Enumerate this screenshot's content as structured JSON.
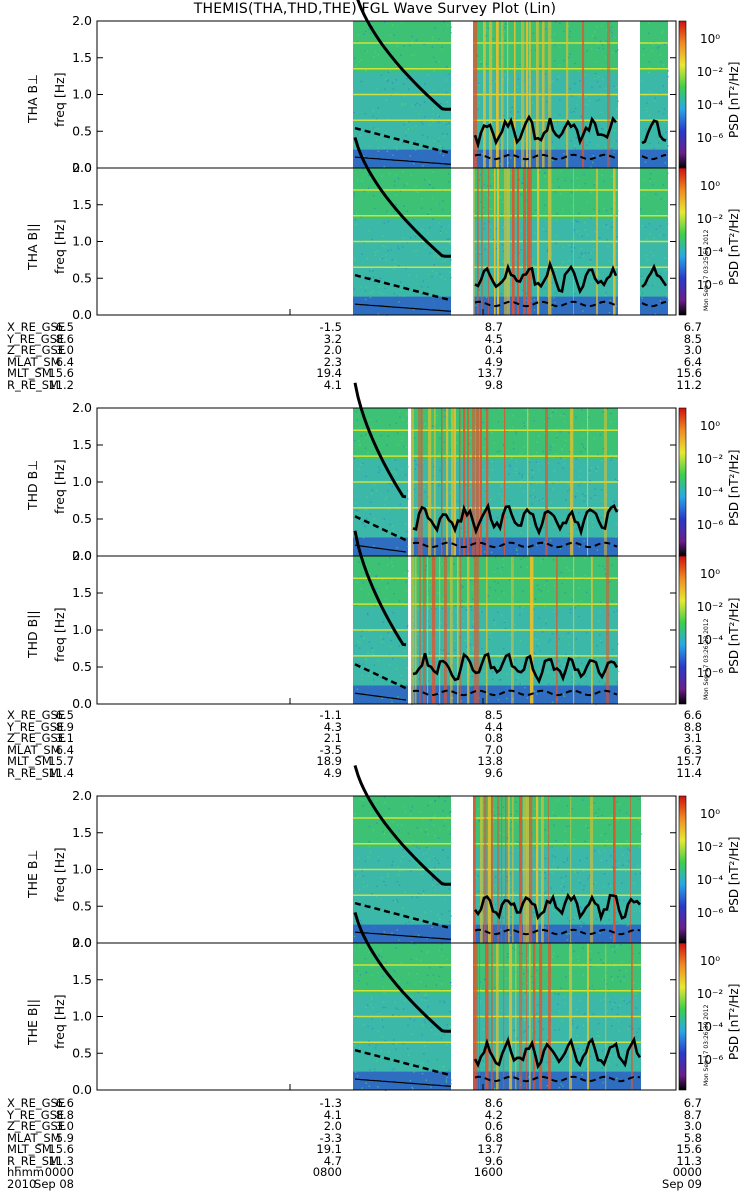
{
  "title": "THEMIS(THA,THD,THE) FGL Wave Survey Plot (Lin)",
  "colors": {
    "background": "#3cb8a8",
    "low_band": "#2a54c8",
    "high_band": "#3ecb4a",
    "hot": "#e8502a",
    "curve": "#000000",
    "line": "#e8e830"
  },
  "chart_data": [
    {
      "type": "heatmap",
      "probe": "THA",
      "panels": [
        {
          "name": "THA B⊥",
          "ylabel": "freq [Hz]",
          "component": "perp"
        },
        {
          "name": "THA B||",
          "ylabel": "freq [Hz]",
          "component": "par"
        }
      ],
      "y_ticks": [
        "2.0",
        "1.5",
        "1.0",
        "0.5",
        "0.0"
      ],
      "ylim": [
        0,
        2.0
      ],
      "colorbar_label": "PSD [nT²/Hz]",
      "colorbar_ticks": [
        "10⁰",
        "10⁻²",
        "10⁻⁴",
        "10⁻⁶"
      ],
      "colorbar_stamp": "Mon Sep 17 03:25:51 2012",
      "ephemeris": {
        "labels": [
          "X_RE_GSE",
          "Y_RE_GSE",
          "Z_RE_GSE",
          "MLAT_SM",
          "MLT_SM",
          "R_RE_SM"
        ],
        "columns": [
          [
            "6.5",
            "8.6",
            "3.0",
            "6.4",
            "15.6",
            "11.2"
          ],
          [
            "-1.5",
            "3.2",
            "2.0",
            "2.3",
            "19.4",
            "4.1"
          ],
          [
            "8.7",
            "4.5",
            "0.4",
            "4.9",
            "13.7",
            "9.8"
          ],
          [
            "6.7",
            "8.5",
            "3.0",
            "6.4",
            "15.6",
            "11.2"
          ]
        ]
      }
    },
    {
      "type": "heatmap",
      "probe": "THD",
      "panels": [
        {
          "name": "THD B⊥",
          "ylabel": "freq [Hz]",
          "component": "perp"
        },
        {
          "name": "THD B||",
          "ylabel": "freq [Hz]",
          "component": "par"
        }
      ],
      "y_ticks": [
        "2.0",
        "1.5",
        "1.0",
        "0.5",
        "0.0"
      ],
      "ylim": [
        0,
        2.0
      ],
      "colorbar_label": "PSD [nT²/Hz]",
      "colorbar_ticks": [
        "10⁰",
        "10⁻²",
        "10⁻⁴",
        "10⁻⁶"
      ],
      "colorbar_stamp": "Mon Sep 17 03:26:22 2012",
      "ephemeris": {
        "labels": [
          "X_RE_GSE",
          "Y_RE_GSE",
          "Z_RE_GSE",
          "MLAT_SM",
          "MLT_SM",
          "R_RE_SM"
        ],
        "columns": [
          [
            "6.5",
            "8.9",
            "3.1",
            "6.4",
            "15.7",
            "11.4"
          ],
          [
            "-1.1",
            "4.3",
            "2.1",
            "-3.5",
            "18.9",
            "4.9"
          ],
          [
            "8.5",
            "4.4",
            "0.8",
            "7.0",
            "13.8",
            "9.6"
          ],
          [
            "6.6",
            "8.8",
            "3.1",
            "6.3",
            "15.7",
            "11.4"
          ]
        ]
      }
    },
    {
      "type": "heatmap",
      "probe": "THE",
      "panels": [
        {
          "name": "THE B⊥",
          "ylabel": "freq [Hz]",
          "component": "perp"
        },
        {
          "name": "THE B||",
          "ylabel": "freq [Hz]",
          "component": "par"
        }
      ],
      "y_ticks": [
        "2.0",
        "1.5",
        "1.0",
        "0.5",
        "0.0"
      ],
      "ylim": [
        0,
        2.0
      ],
      "colorbar_label": "PSD [nT²/Hz]",
      "colorbar_ticks": [
        "10⁰",
        "10⁻²",
        "10⁻⁴",
        "10⁻⁶"
      ],
      "colorbar_stamp": "Mon Sep 17 03:26:39 2012",
      "ephemeris": {
        "labels": [
          "X_RE_GSE",
          "Y_RE_GSE",
          "Z_RE_GSE",
          "MLAT_SM",
          "MLT_SM",
          "R_RE_SM",
          "hhmm",
          "2010"
        ],
        "columns": [
          [
            "6.6",
            "8.8",
            "3.0",
            "5.9",
            "15.6",
            "11.3",
            "0000",
            "Sep 08"
          ],
          [
            "-1.3",
            "4.1",
            "2.0",
            "-3.3",
            "19.1",
            "4.7",
            "0800",
            ""
          ],
          [
            "8.6",
            "4.2",
            "0.6",
            "6.8",
            "13.7",
            "9.6",
            "1600",
            ""
          ],
          [
            "6.7",
            "8.7",
            "3.0",
            "5.8",
            "15.6",
            "11.3",
            "0000",
            "Sep 09"
          ]
        ]
      }
    }
  ]
}
